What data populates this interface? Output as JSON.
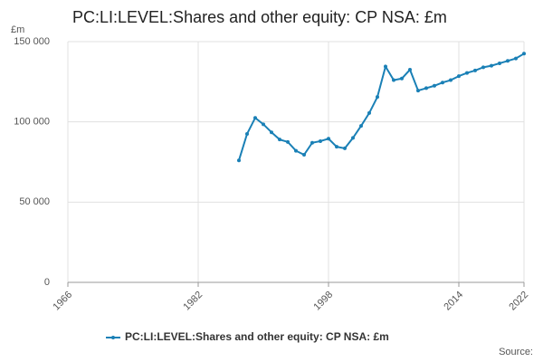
{
  "chart_data": {
    "type": "line",
    "title": "PC:LI:LEVEL:Shares and other equity: CP NSA: £m",
    "y_label": "£m",
    "source": "Source:",
    "x": [
      1987,
      1988,
      1989,
      1990,
      1991,
      1992,
      1993,
      1994,
      1995,
      1996,
      1997,
      1998,
      1999,
      2000,
      2001,
      2002,
      2003,
      2004,
      2005,
      2006,
      2007,
      2008,
      2009,
      2010,
      2011,
      2012,
      2013,
      2014,
      2015,
      2016,
      2017,
      2018,
      2019,
      2020,
      2021,
      2022
    ],
    "series": [
      {
        "name": "PC:LI:LEVEL:Shares and other equity: CP NSA: £m",
        "color": "#1a80b6",
        "values": [
          76000,
          92500,
          102500,
          98500,
          93500,
          89000,
          87500,
          82000,
          79500,
          87000,
          88000,
          89500,
          84500,
          83500,
          90000,
          97500,
          105500,
          115500,
          134500,
          126000,
          127000,
          132500,
          119500,
          121000,
          122500,
          124500,
          126000,
          128500,
          130500,
          132000,
          134000,
          135000,
          136500,
          138000,
          139500,
          142500
        ]
      }
    ],
    "xlim": [
      1966,
      2022
    ],
    "xticks": [
      1966,
      1982,
      1998,
      2014,
      2022
    ],
    "ylim": [
      0,
      150000
    ],
    "yticks": [
      0,
      {
        "value": 50000,
        "label": "50 000"
      },
      {
        "value": 100000,
        "label": "100 000"
      },
      {
        "value": 150000,
        "label": "150 000"
      }
    ],
    "grid": true
  }
}
